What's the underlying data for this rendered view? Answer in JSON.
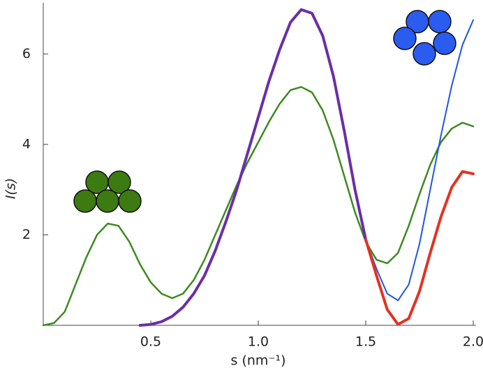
{
  "chart_data": {
    "type": "line",
    "x_label": "s (nm⁻¹)",
    "y_label": "I(s)",
    "x": [
      0,
      0.05,
      0.1,
      0.15,
      0.2,
      0.25,
      0.3,
      0.35,
      0.4,
      0.45,
      0.5,
      0.55,
      0.6,
      0.65,
      0.7,
      0.75,
      0.8,
      0.85,
      0.9,
      0.95,
      1.0,
      1.05,
      1.1,
      1.15,
      1.2,
      1.25,
      1.3,
      1.35,
      1.4,
      1.45,
      1.5,
      1.55,
      1.6,
      1.65,
      1.7,
      1.75,
      1.8,
      1.85,
      1.9,
      1.95,
      2.0
    ],
    "series": [
      {
        "color": "#3d8a1f",
        "width": 2.5,
        "values": [
          0,
          0.05,
          0.3,
          0.9,
          1.5,
          2.0,
          2.25,
          2.2,
          1.85,
          1.35,
          0.95,
          0.7,
          0.6,
          0.7,
          1.0,
          1.45,
          2.0,
          2.55,
          3.1,
          3.6,
          4.05,
          4.5,
          4.9,
          5.2,
          5.27,
          5.15,
          4.75,
          4.1,
          3.3,
          2.5,
          1.85,
          1.45,
          1.37,
          1.6,
          2.2,
          2.9,
          3.55,
          4.05,
          4.35,
          4.48,
          4.4
        ]
      },
      {
        "color": "#6a2fa8",
        "width": 4,
        "values": [
          null,
          null,
          null,
          null,
          null,
          null,
          null,
          null,
          null,
          0,
          0.02,
          0.08,
          0.2,
          0.4,
          0.7,
          1.1,
          1.65,
          2.3,
          3.0,
          3.8,
          4.6,
          5.4,
          6.1,
          6.7,
          6.98,
          6.9,
          6.4,
          5.5,
          4.3,
          3.0,
          1.9,
          null,
          null,
          null,
          null,
          null,
          null,
          null,
          null,
          null,
          null
        ]
      },
      {
        "color": "#2255e0",
        "width": 2,
        "values": [
          null,
          null,
          null,
          null,
          null,
          null,
          null,
          null,
          null,
          null,
          null,
          null,
          null,
          null,
          null,
          null,
          null,
          null,
          null,
          null,
          null,
          null,
          null,
          null,
          null,
          null,
          null,
          null,
          null,
          null,
          1.9,
          1.25,
          0.7,
          0.55,
          0.9,
          1.8,
          3.0,
          4.2,
          5.3,
          6.2,
          6.75
        ]
      },
      {
        "color": "#e33322",
        "width": 4,
        "values": [
          null,
          null,
          null,
          null,
          null,
          null,
          null,
          null,
          null,
          null,
          null,
          null,
          null,
          null,
          null,
          null,
          null,
          null,
          null,
          null,
          null,
          null,
          null,
          null,
          null,
          null,
          null,
          null,
          null,
          null,
          1.9,
          1.1,
          0.35,
          0.02,
          0.15,
          0.75,
          1.6,
          2.4,
          3.05,
          3.4,
          3.35
        ]
      }
    ],
    "xlim": [
      0,
      2.0
    ],
    "ylim": [
      0,
      7.1
    ],
    "xticks": [
      0.5,
      {
        "value": 1,
        "label": "1.0"
      },
      1.5,
      {
        "value": 2,
        "label": "2.0"
      }
    ],
    "yticks": [
      2,
      4,
      6
    ]
  }
}
